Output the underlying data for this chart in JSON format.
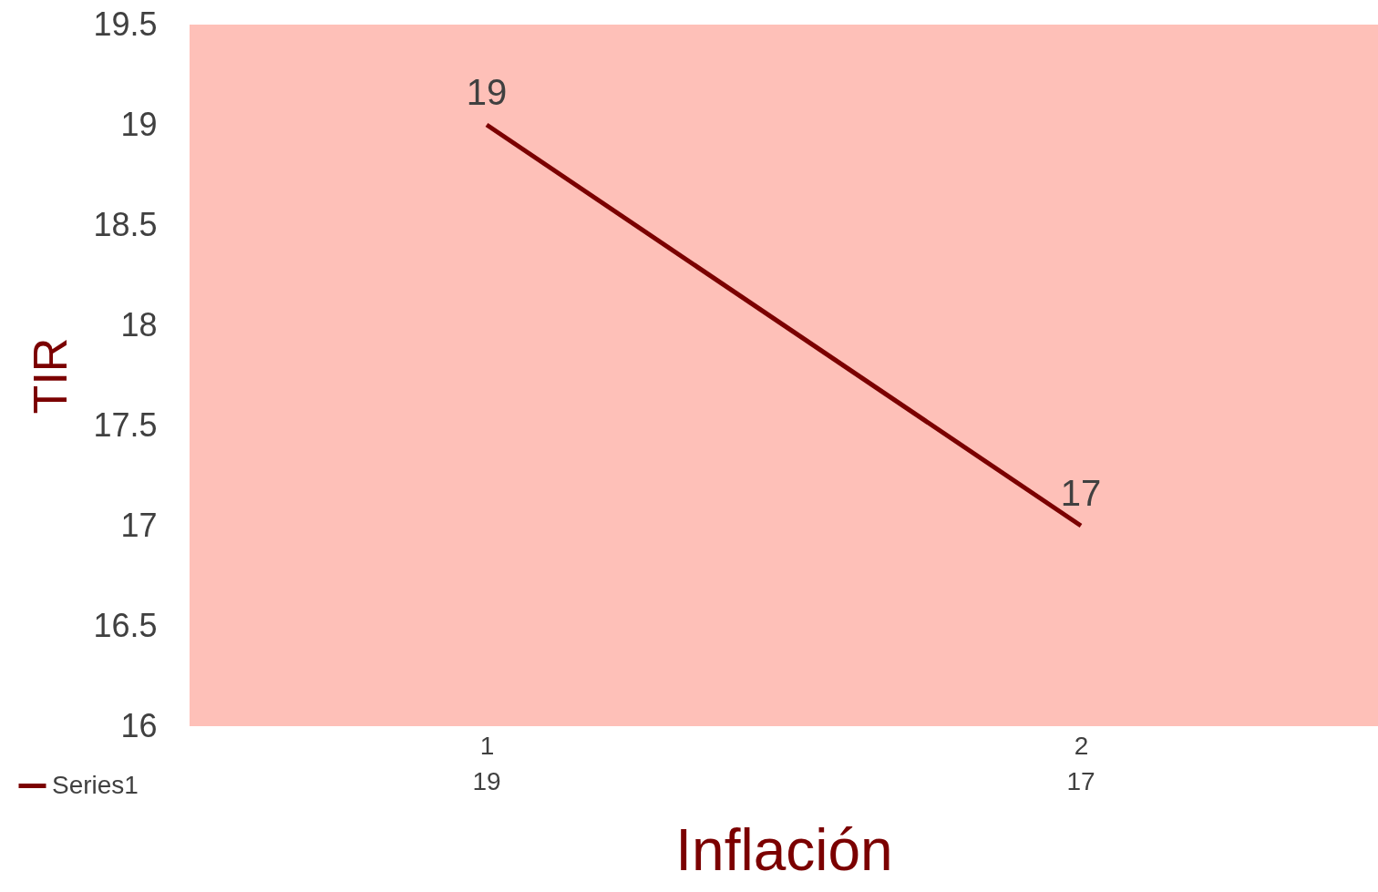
{
  "chart_data": {
    "type": "line",
    "xlabel": "Inflación",
    "ylabel": "TIR",
    "categories": [
      "1",
      "2"
    ],
    "series": [
      {
        "name": "Series1",
        "color": "#7b0000",
        "values": [
          19,
          17
        ]
      }
    ],
    "ylim": [
      16,
      19.5
    ],
    "yticks": [
      16,
      16.5,
      17,
      17.5,
      18,
      18.5,
      19,
      19.5
    ],
    "grid": false,
    "data_labels": true,
    "annotations": [
      "19",
      "17"
    ],
    "legend": "bottom",
    "marker": "none"
  }
}
